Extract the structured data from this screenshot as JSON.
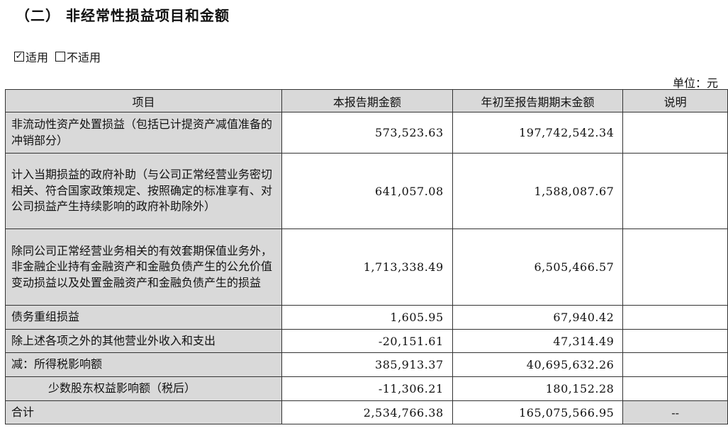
{
  "title": "（二） 非经常性损益项目和金额",
  "applicability": {
    "applicable_label": "适用",
    "applicable_checked": true,
    "not_applicable_label": "不适用",
    "not_applicable_checked": false,
    "check_mark": "✓"
  },
  "unit": "单位：元",
  "table": {
    "headers": [
      "项目",
      "本报告期金额",
      "年初至报告期期末金额",
      "说明"
    ],
    "rows": [
      {
        "item": "非流动性资产处置损益（包括已计提资产减值准备的冲销部分）",
        "current": "573,523.63",
        "ytd": "197,742,542.34",
        "note": ""
      },
      {
        "item": "计入当期损益的政府补助（与公司正常经营业务密切相关、符合国家政策规定、按照确定的标准享有、对公司损益产生持续影响的政府补助除外）",
        "current": "641,057.08",
        "ytd": "1,588,087.67",
        "note": ""
      },
      {
        "item": "除同公司正常经营业务相关的有效套期保值业务外，非金融企业持有金融资产和金融负债产生的公允价值变动损益以及处置金融资产和金融负债产生的损益",
        "current": "1,713,338.49",
        "ytd": "6,505,466.57",
        "note": ""
      },
      {
        "item": "债务重组损益",
        "current": "1,605.95",
        "ytd": "67,940.42",
        "note": ""
      },
      {
        "item": "除上述各项之外的其他营业外收入和支出",
        "current": "-20,151.61",
        "ytd": "47,314.49",
        "note": ""
      },
      {
        "item": "减：所得税影响额",
        "current": "385,913.37",
        "ytd": "40,695,632.26",
        "note": ""
      },
      {
        "item": "少数股东权益影响额（税后）",
        "current": "-11,306.21",
        "ytd": "180,152.28",
        "note": ""
      },
      {
        "item": "合计",
        "current": "2,534,766.38",
        "ytd": "165,075,566.95",
        "note": "--"
      }
    ]
  }
}
